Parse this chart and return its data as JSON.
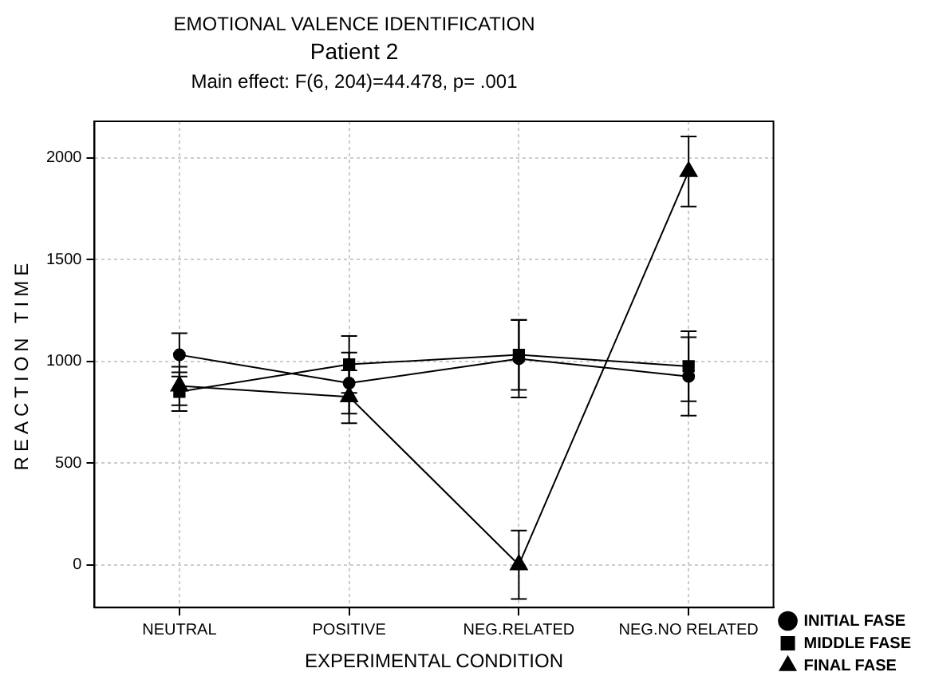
{
  "chart_data": {
    "type": "line",
    "title": "EMOTIONAL VALENCE IDENTIFICATION",
    "subtitle": "Patient 2",
    "annotations": [
      "Main effect: F(6, 204)=44.478, p= .001"
    ],
    "xlabel": "EXPERIMENTAL CONDITION",
    "ylabel": "REACTION TIME",
    "categories": [
      "NEUTRAL",
      "POSITIVE",
      "NEG.RELATED",
      "NEG.NO RELATED"
    ],
    "series": [
      {
        "name": "INITIAL FASE",
        "color": "#000000",
        "marker": "circle",
        "values": [
          1032,
          893,
          1013,
          926
        ],
        "errors": [
          106,
          150,
          190,
          193
        ]
      },
      {
        "name": "MIDDLE FASE",
        "color": "#000000",
        "marker": "square",
        "values": [
          851,
          985,
          1032,
          976
        ],
        "errors": [
          95,
          140,
          172,
          172
        ]
      },
      {
        "name": "FINAL FASE",
        "color": "#000000",
        "marker": "triangle",
        "values": [
          879,
          826,
          0,
          1933
        ],
        "errors": [
          95,
          130,
          168,
          172
        ]
      }
    ],
    "ylim": [
      -210,
      2180
    ],
    "yticks": [
      0,
      500,
      1000,
      1500,
      2000
    ],
    "grid": true,
    "legend": "bottom right",
    "line_style": "solid"
  }
}
